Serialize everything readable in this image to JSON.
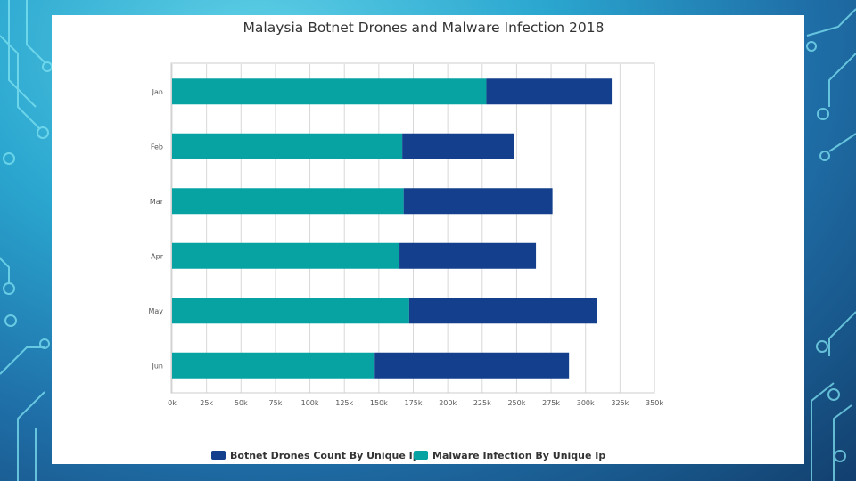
{
  "colors": {
    "botnet": "#143f8c",
    "malware": "#07a3a3",
    "grid": "#d8d8d8",
    "axis": "#9a9a9a"
  },
  "chart_data": {
    "type": "bar",
    "orientation": "horizontal",
    "stacked": true,
    "title": "Malaysia Botnet Drones and Malware Infection 2018",
    "categories": [
      "Jan",
      "Feb",
      "Mar",
      "Apr",
      "May",
      "Jun"
    ],
    "series": [
      {
        "name": "Malware Infection By Unique Ip",
        "color": "#07a3a3",
        "values": [
          228000,
          167000,
          168000,
          165000,
          172000,
          147000
        ]
      },
      {
        "name": "Botnet Drones Count By Unique Ip",
        "color": "#143f8c",
        "values": [
          91000,
          81000,
          108000,
          99000,
          136000,
          141000
        ]
      }
    ],
    "xlim": [
      0,
      350000
    ],
    "x_ticks": [
      "0k",
      "25k",
      "50k",
      "75k",
      "100k",
      "125k",
      "150k",
      "175k",
      "200k",
      "225k",
      "250k",
      "275k",
      "300k",
      "325k",
      "350k"
    ],
    "grid": true,
    "legend": {
      "position": "bottom-center",
      "items": [
        "Botnet Drones Count By Unique Ip",
        "Malware Infection By Unique Ip"
      ]
    }
  }
}
